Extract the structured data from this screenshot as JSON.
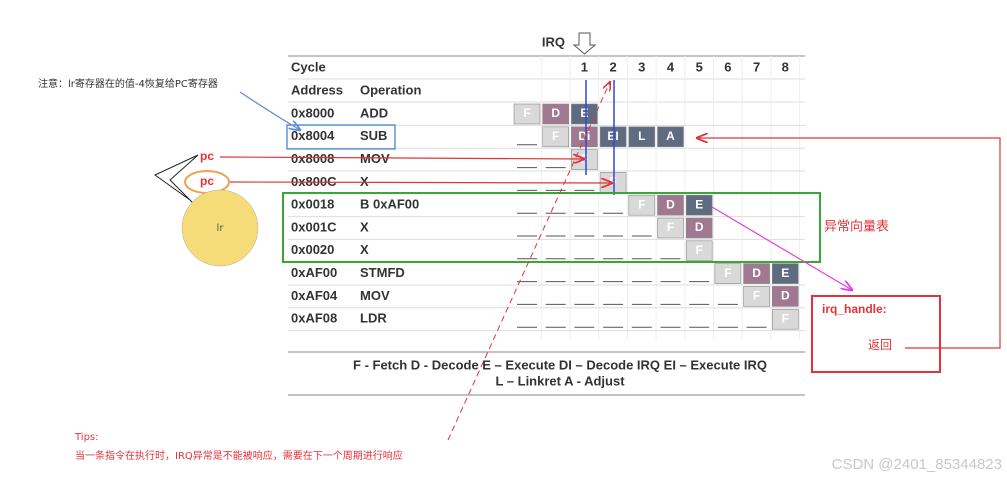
{
  "irq_label": "IRQ",
  "table": {
    "cycle_header": "Cycle",
    "cycles": [
      null,
      null,
      "1",
      "2",
      "3",
      "4",
      "5",
      "6",
      "7",
      "8"
    ],
    "address_header": "Address",
    "operation_header": "Operation",
    "rows": [
      {
        "address": "0x8000",
        "operation": "ADD",
        "stages": [
          {
            "label": "F",
            "color": "#d9d9d9"
          },
          {
            "label": "D",
            "color": "#a07890"
          },
          {
            "label": "E",
            "color": "#5f6b80"
          },
          null,
          null,
          null,
          null,
          null,
          null,
          null
        ]
      },
      {
        "address": "0x8004",
        "operation": "SUB",
        "stages": [
          null,
          {
            "label": "F",
            "color": "#d9d9d9"
          },
          {
            "label": "Di",
            "color": "#a07890"
          },
          {
            "label": "EI",
            "color": "#5f6b80"
          },
          {
            "label": "L",
            "color": "#5f6b80"
          },
          {
            "label": "A",
            "color": "#5f6b80"
          },
          null,
          null,
          null,
          null
        ]
      },
      {
        "address": "0x8008",
        "operation": "MOV",
        "stages": [
          null,
          null,
          {
            "label": "F",
            "color": "#d9d9d9"
          },
          null,
          null,
          null,
          null,
          null,
          null,
          null
        ]
      },
      {
        "address": "0x800C",
        "operation": "X",
        "stages": [
          null,
          null,
          null,
          {
            "label": "F",
            "color": "#d9d9d9"
          },
          null,
          null,
          null,
          null,
          null,
          null
        ]
      },
      {
        "address": "0x0018",
        "operation": "B 0xAF00",
        "stages": [
          null,
          null,
          null,
          null,
          {
            "label": "F",
            "color": "#d9d9d9"
          },
          {
            "label": "D",
            "color": "#a07890"
          },
          {
            "label": "E",
            "color": "#5f6b80"
          },
          null,
          null,
          null
        ]
      },
      {
        "address": "0x001C",
        "operation": "X",
        "stages": [
          null,
          null,
          null,
          null,
          null,
          {
            "label": "F",
            "color": "#d9d9d9"
          },
          {
            "label": "D",
            "color": "#a07890"
          },
          null,
          null,
          null
        ]
      },
      {
        "address": "0x0020",
        "operation": "X",
        "stages": [
          null,
          null,
          null,
          null,
          null,
          null,
          {
            "label": "F",
            "color": "#d9d9d9"
          },
          null,
          null,
          null
        ]
      },
      {
        "address": "0xAF00",
        "operation": "STMFD",
        "stages": [
          null,
          null,
          null,
          null,
          null,
          null,
          null,
          {
            "label": "F",
            "color": "#d9d9d9"
          },
          {
            "label": "D",
            "color": "#a07890"
          },
          {
            "label": "E",
            "color": "#5f6b80"
          }
        ]
      },
      {
        "address": "0xAF04",
        "operation": "MOV",
        "stages": [
          null,
          null,
          null,
          null,
          null,
          null,
          null,
          null,
          {
            "label": "F",
            "color": "#d9d9d9"
          },
          {
            "label": "D",
            "color": "#a07890"
          }
        ]
      },
      {
        "address": "0xAF08",
        "operation": "LDR",
        "stages": [
          null,
          null,
          null,
          null,
          null,
          null,
          null,
          null,
          null,
          {
            "label": "F",
            "color": "#d9d9d9"
          }
        ]
      }
    ],
    "legend": [
      "F - Fetch    D - Decode    E – Execute    DI – Decode IRQ    EI – Execute IRQ",
      "L – Linkret   A - Adjust"
    ]
  },
  "annotations": {
    "note": "注意：lr寄存器在的值-4恢复给PC寄存器",
    "pc_1": "pc",
    "pc_2": "pc",
    "lr": "lr",
    "vector_table": "异常向量表",
    "irq_handle": "irq_handle:",
    "return": "返回",
    "tips_title": "Tips:",
    "tips_text": "当一条指令在执行时，IRQ异常是不能被响应，需要在下一个周期进行响应"
  },
  "watermark": "CSDN @2401_85344823"
}
